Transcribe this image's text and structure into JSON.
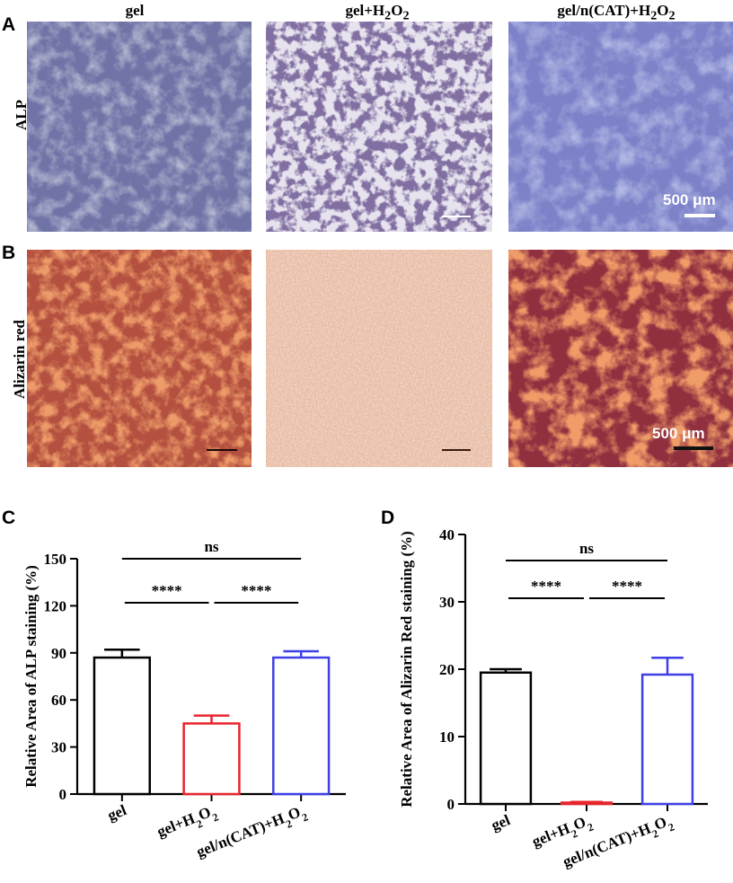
{
  "panel_labels": {
    "A": "A",
    "B": "B",
    "C": "C",
    "D": "D"
  },
  "micrograph_grid": {
    "columns": [
      "gel",
      "gel+H2O2",
      "gel/n(CAT)+H2O2"
    ],
    "rows": [
      "ALP",
      "Alizarin red"
    ],
    "scale_bar_label": "500 μm"
  },
  "colors": {
    "gel": "#000000",
    "gel+H2O2": "#e8242c",
    "gel/n(CAT)+H2O2": "#3f3fe8",
    "alp_stain": "#3a3f8f",
    "alizarin_stain": "#d8501e"
  },
  "chart_data": [
    {
      "type": "bar",
      "panel": "C",
      "ylabel": "Relative Area of ALP staining (%)",
      "categories": [
        "gel",
        "gel+H2O2",
        "gel/n(CAT)+H2O2"
      ],
      "values": [
        87,
        45,
        87
      ],
      "errors": [
        5,
        5,
        4
      ],
      "ylim": [
        0,
        150
      ],
      "yticks": [
        0,
        30,
        60,
        90,
        120,
        150
      ],
      "significance": [
        {
          "from": 0,
          "to": 1,
          "label": "****",
          "level": 0
        },
        {
          "from": 1,
          "to": 2,
          "label": "****",
          "level": 0
        },
        {
          "from": 0,
          "to": 2,
          "label": "ns",
          "level": 1
        }
      ]
    },
    {
      "type": "bar",
      "panel": "D",
      "ylabel": "Relative Area of Alizarin Red staining (%)",
      "categories": [
        "gel",
        "gel+H2O2",
        "gel/n(CAT)+H2O2"
      ],
      "values": [
        19.5,
        0.2,
        19.2
      ],
      "errors": [
        0.5,
        0.1,
        2.5
      ],
      "ylim": [
        0,
        40
      ],
      "yticks": [
        0,
        10,
        20,
        30,
        40
      ],
      "significance": [
        {
          "from": 0,
          "to": 1,
          "label": "****",
          "level": 0
        },
        {
          "from": 1,
          "to": 2,
          "label": "****",
          "level": 0
        },
        {
          "from": 0,
          "to": 2,
          "label": "ns",
          "level": 1
        }
      ]
    }
  ]
}
